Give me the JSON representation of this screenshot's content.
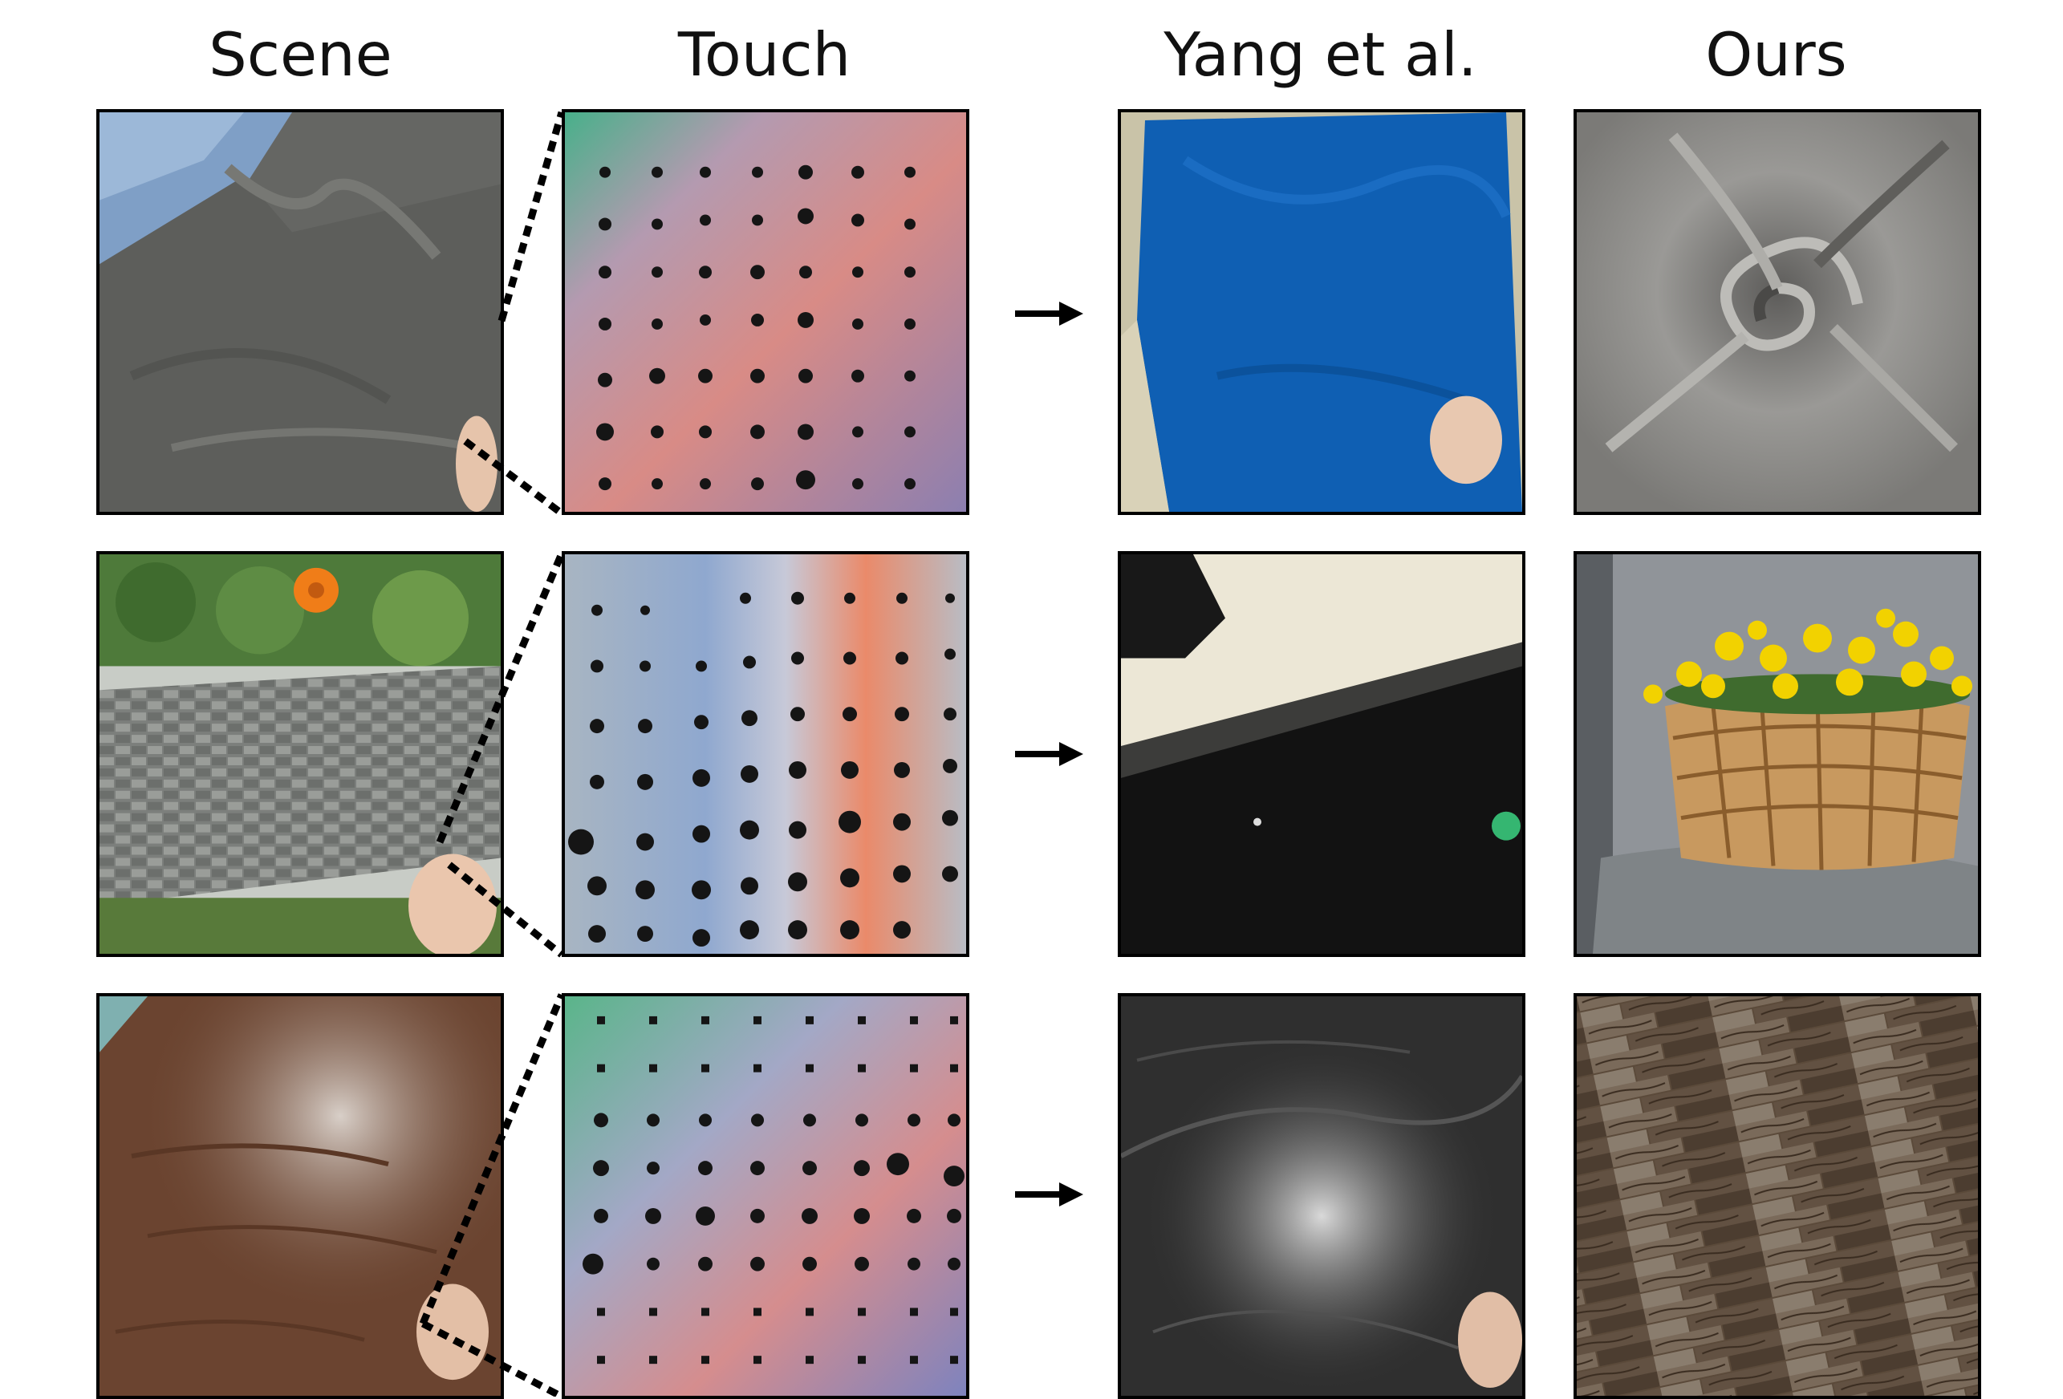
{
  "headers": {
    "scene": "Scene",
    "touch": "Touch",
    "yang": "Yang et al.",
    "ours": "Ours"
  },
  "rows": [
    {
      "scene": "gray cloth with hand",
      "touch": "tactile sensor imprint of cloth",
      "yang": "blue cloth with hand",
      "ours": "gray swirled fabric"
    },
    {
      "scene": "woven planter box with flowers",
      "touch": "tactile sensor imprint of weave",
      "yang": "dark surface with light",
      "ours": "wicker basket of yellow flowers on gray chair"
    },
    {
      "scene": "wooden table with hand",
      "touch": "tactile sensor imprint of wood",
      "yang": "dark marble surface with hand",
      "ours": "wooden plank floor"
    }
  ],
  "colors": {
    "border": "#000000",
    "cloth_gray": "#6a6b68",
    "blue_cloth": "#0f5fb3",
    "wood_brown": "#6b4430",
    "flower_yellow": "#f2d200",
    "flower_orange": "#f07d18"
  },
  "icons": [
    "right-arrow-icon",
    "dotted-zoom-lines"
  ]
}
